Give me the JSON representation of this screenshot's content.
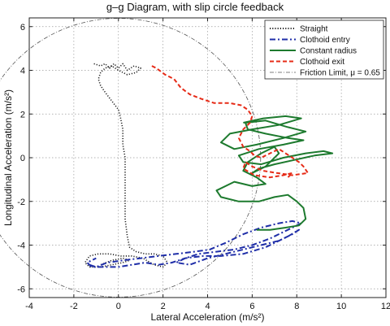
{
  "chart_data": {
    "type": "line",
    "title": "g–g Diagram, with slip circle feedback",
    "xlabel": "Lateral Acceleration (m/s²)",
    "ylabel": "Longitudinal Acceleration (m/s²)",
    "xlim": [
      -4,
      12
    ],
    "ylim": [
      -6.4,
      6.4
    ],
    "xticks": [
      "-4",
      "-2",
      "0",
      "2",
      "4",
      "6",
      "8",
      "10",
      "12"
    ],
    "yticks": [
      "-6",
      "-4",
      "-2",
      "0",
      "2",
      "4",
      "6"
    ],
    "grid": true,
    "legend_position": "top-right",
    "friction_circle": {
      "mu": 0.65,
      "radius": 6.38,
      "center": [
        0,
        0
      ]
    },
    "series": [
      {
        "name": "Straight",
        "color": "#222222",
        "style": "dotted",
        "x": [
          -1.1,
          -0.8,
          -0.6,
          -0.4,
          -0.2,
          0.0,
          0.2,
          0.4,
          0.7,
          1.0,
          0.8,
          0.4,
          0.0,
          -0.3,
          -0.6,
          -0.8,
          -0.9,
          -0.8,
          -0.6,
          -0.3,
          0.0,
          0.1,
          0.2,
          0.2,
          0.3,
          0.3,
          0.3,
          0.3,
          0.4,
          0.5,
          0.8,
          1.2,
          1.6,
          2.0,
          2.2,
          2.0,
          1.6,
          1.1,
          0.6,
          0.1,
          -0.4,
          -0.9,
          -1.3,
          -1.5,
          -1.3,
          -0.8,
          -0.3,
          0.2,
          0.5,
          0.2,
          -0.3,
          -0.8
        ],
        "y": [
          4.3,
          4.2,
          4.3,
          4.1,
          4.3,
          4.1,
          4.3,
          4.0,
          4.2,
          4.1,
          3.9,
          3.8,
          4.0,
          4.2,
          4.1,
          3.9,
          3.6,
          3.3,
          3.0,
          2.6,
          2.2,
          1.8,
          1.3,
          0.6,
          0.0,
          -0.8,
          -1.8,
          -2.8,
          -3.6,
          -4.1,
          -4.3,
          -4.4,
          -4.4,
          -4.5,
          -4.8,
          -5.0,
          -4.9,
          -4.6,
          -4.5,
          -4.5,
          -4.4,
          -4.4,
          -4.5,
          -4.8,
          -5.0,
          -5.0,
          -4.9,
          -4.8,
          -4.7,
          -4.6,
          -4.7,
          -4.9
        ]
      },
      {
        "name": "Clothoid entry",
        "color": "#1f2ea8",
        "style": "dashdot",
        "x": [
          -1.3,
          -1.0,
          -0.5,
          0.2,
          1.0,
          1.8,
          2.6,
          3.4,
          4.1,
          4.8,
          5.6,
          6.4,
          7.2,
          7.8,
          8.2,
          7.6,
          6.8,
          6.0,
          5.2,
          4.4,
          3.6,
          3.0,
          2.6,
          3.2,
          4.0,
          4.8,
          5.6,
          6.4,
          7.2,
          7.8,
          8.1,
          7.6,
          6.6,
          5.6,
          4.6,
          3.8,
          3.0,
          2.4,
          1.8,
          1.2,
          0.6,
          0.0,
          -0.6,
          -1.2,
          -1.4,
          -1.0
        ],
        "y": [
          -4.9,
          -5.0,
          -4.8,
          -4.7,
          -4.6,
          -4.5,
          -4.4,
          -4.3,
          -4.2,
          -3.9,
          -3.5,
          -3.2,
          -3.0,
          -2.9,
          -3.0,
          -3.3,
          -3.7,
          -4.0,
          -4.2,
          -4.3,
          -4.4,
          -4.6,
          -4.8,
          -4.9,
          -4.6,
          -4.4,
          -4.2,
          -4.0,
          -3.8,
          -3.5,
          -3.3,
          -3.6,
          -4.1,
          -4.4,
          -4.5,
          -4.5,
          -4.6,
          -4.8,
          -4.9,
          -4.8,
          -4.9,
          -5.0,
          -5.0,
          -5.0,
          -4.8,
          -4.6
        ]
      },
      {
        "name": "Constant radius",
        "color": "#1d7a2e",
        "style": "solid",
        "x": [
          5.6,
          6.5,
          7.5,
          8.2,
          7.2,
          6.0,
          5.0,
          4.6,
          5.2,
          6.2,
          7.4,
          8.4,
          7.6,
          6.6,
          5.7,
          5.8,
          6.6,
          7.6,
          8.3,
          7.4,
          6.3,
          5.4,
          5.6,
          6.4,
          7.4,
          8.4,
          9.2,
          9.6,
          8.8,
          7.9,
          7.0,
          6.3,
          6.0,
          6.6,
          7.2,
          7.0,
          6.4,
          5.8,
          5.6,
          6.2,
          6.6,
          6.0,
          5.2,
          4.4,
          4.6,
          5.4,
          6.3,
          7.0,
          7.6,
          8.0,
          8.3,
          8.4,
          8.1,
          7.5,
          6.8,
          6.2
        ],
        "y": [
          1.6,
          1.8,
          1.9,
          1.8,
          1.5,
          1.3,
          1.1,
          0.7,
          0.4,
          0.6,
          0.9,
          1.2,
          1.4,
          1.7,
          1.6,
          1.3,
          1.1,
          0.9,
          0.8,
          0.6,
          0.4,
          0.1,
          -0.2,
          -0.3,
          0.0,
          0.2,
          0.3,
          0.2,
          0.1,
          -0.1,
          -0.3,
          -0.5,
          -0.7,
          -0.4,
          0.2,
          0.5,
          0.2,
          -0.2,
          -0.6,
          -0.9,
          -1.2,
          -1.3,
          -1.1,
          -1.5,
          -1.8,
          -2.0,
          -2.0,
          -1.8,
          -1.7,
          -2.0,
          -2.3,
          -2.8,
          -3.1,
          -3.2,
          -3.3,
          -3.3
        ]
      },
      {
        "name": "Clothoid exit",
        "color": "#e62b17",
        "style": "dashed",
        "x": [
          1.5,
          1.7,
          2.1,
          2.5,
          2.8,
          3.2,
          3.7,
          4.3,
          5.0,
          5.5,
          5.8,
          6.0,
          5.9,
          5.6,
          5.4,
          5.6,
          5.9,
          6.1,
          6.4,
          6.8,
          7.2,
          7.5,
          7.8,
          8.1,
          8.3,
          8.5,
          7.8,
          7.1,
          6.5,
          6.0,
          5.7,
          5.6,
          6.1,
          6.8,
          7.4,
          7.8,
          7.6
        ],
        "y": [
          4.2,
          4.1,
          3.8,
          3.6,
          3.2,
          2.9,
          2.7,
          2.5,
          2.5,
          2.4,
          2.2,
          1.9,
          1.6,
          1.3,
          0.9,
          0.5,
          0.3,
          0.1,
          0.0,
          0.2,
          0.4,
          0.2,
          0.0,
          -0.2,
          -0.4,
          -0.7,
          -0.8,
          -0.7,
          -0.6,
          -0.4,
          -0.2,
          -0.5,
          -0.8,
          -0.9,
          -0.8,
          -0.7,
          -0.9
        ]
      }
    ],
    "legend": [
      {
        "label": "Straight",
        "series": 0
      },
      {
        "label": "Clothoid entry",
        "series": 1
      },
      {
        "label": "Constant radius",
        "series": 2
      },
      {
        "label": "Clothoid exit",
        "series": 3
      },
      {
        "label": "Friction Limit, μ = 0.65",
        "series": "friction_circle"
      }
    ]
  }
}
